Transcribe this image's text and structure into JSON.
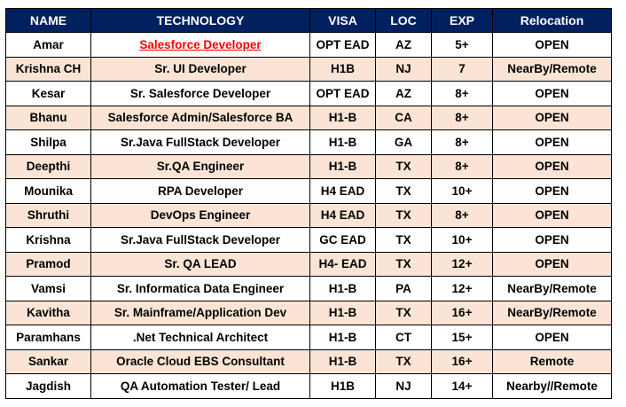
{
  "colors": {
    "header_bg": "#002060",
    "header_text": "#ffffff",
    "row_alt_bg": "#fbe4d5",
    "row_bg": "#ffffff",
    "link": "#ff0000"
  },
  "table": {
    "headers": [
      "NAME",
      "TECHNOLOGY",
      "VISA",
      "LOC",
      "EXP",
      "Relocation"
    ],
    "rows": [
      {
        "name": "Amar",
        "technology": "Salesforce Developer",
        "visa": "OPT EAD",
        "loc": "AZ",
        "exp": "5+",
        "relocation": "OPEN",
        "link": true
      },
      {
        "name": "Krishna CH",
        "technology": "Sr.  UI Developer",
        "visa": "H1B",
        "loc": "NJ",
        "exp": "7",
        "relocation": "NearBy/Remote"
      },
      {
        "name": "Kesar",
        "technology": "Sr. Salesforce Developer",
        "visa": "OPT EAD",
        "loc": "AZ",
        "exp": "8+",
        "relocation": "OPEN"
      },
      {
        "name": "Bhanu",
        "technology": "Salesforce Admin/Salesforce BA",
        "visa": "H1-B",
        "loc": "CA",
        "exp": "8+",
        "relocation": "OPEN"
      },
      {
        "name": "Shilpa",
        "technology": "Sr.Java FullStack Developer",
        "visa": "H1-B",
        "loc": "GA",
        "exp": "8+",
        "relocation": "OPEN"
      },
      {
        "name": "Deepthi",
        "technology": "Sr.QA Engineer",
        "visa": "H1-B",
        "loc": "TX",
        "exp": "8+",
        "relocation": "OPEN"
      },
      {
        "name": "Mounika",
        "technology": "RPA Developer",
        "visa": "H4 EAD",
        "loc": "TX",
        "exp": "10+",
        "relocation": "OPEN"
      },
      {
        "name": "Shruthi",
        "technology": "DevOps Engineer",
        "visa": "H4 EAD",
        "loc": "TX",
        "exp": "8+",
        "relocation": "OPEN"
      },
      {
        "name": "Krishna",
        "technology": "Sr.Java FullStack Developer",
        "visa": "GC EAD",
        "loc": "TX",
        "exp": "10+",
        "relocation": "OPEN"
      },
      {
        "name": "Pramod",
        "technology": "Sr. QA LEAD",
        "visa": "H4- EAD",
        "loc": "TX",
        "exp": "12+",
        "relocation": "OPEN"
      },
      {
        "name": "Vamsi",
        "technology": "Sr. Informatica Data Engineer",
        "visa": "H1-B",
        "loc": "PA",
        "exp": "12+",
        "relocation": "NearBy/Remote"
      },
      {
        "name": "Kavitha",
        "technology": "Sr. Mainframe/Application Dev",
        "visa": "H1-B",
        "loc": "TX",
        "exp": "16+",
        "relocation": "NearBy/Remote"
      },
      {
        "name": "Paramhans",
        "technology": ".Net Technical Architect",
        "visa": "H1-B",
        "loc": "CT",
        "exp": "15+",
        "relocation": "OPEN"
      },
      {
        "name": "Sankar",
        "technology": "Oracle Cloud EBS  Consultant",
        "visa": "H1-B",
        "loc": "TX",
        "exp": "16+",
        "relocation": "Remote"
      },
      {
        "name": "Jagdish",
        "technology": "QA Automation Tester/ Lead",
        "visa": "H1B",
        "loc": "NJ",
        "exp": "14+",
        "relocation": "Nearby//Remote"
      }
    ]
  }
}
